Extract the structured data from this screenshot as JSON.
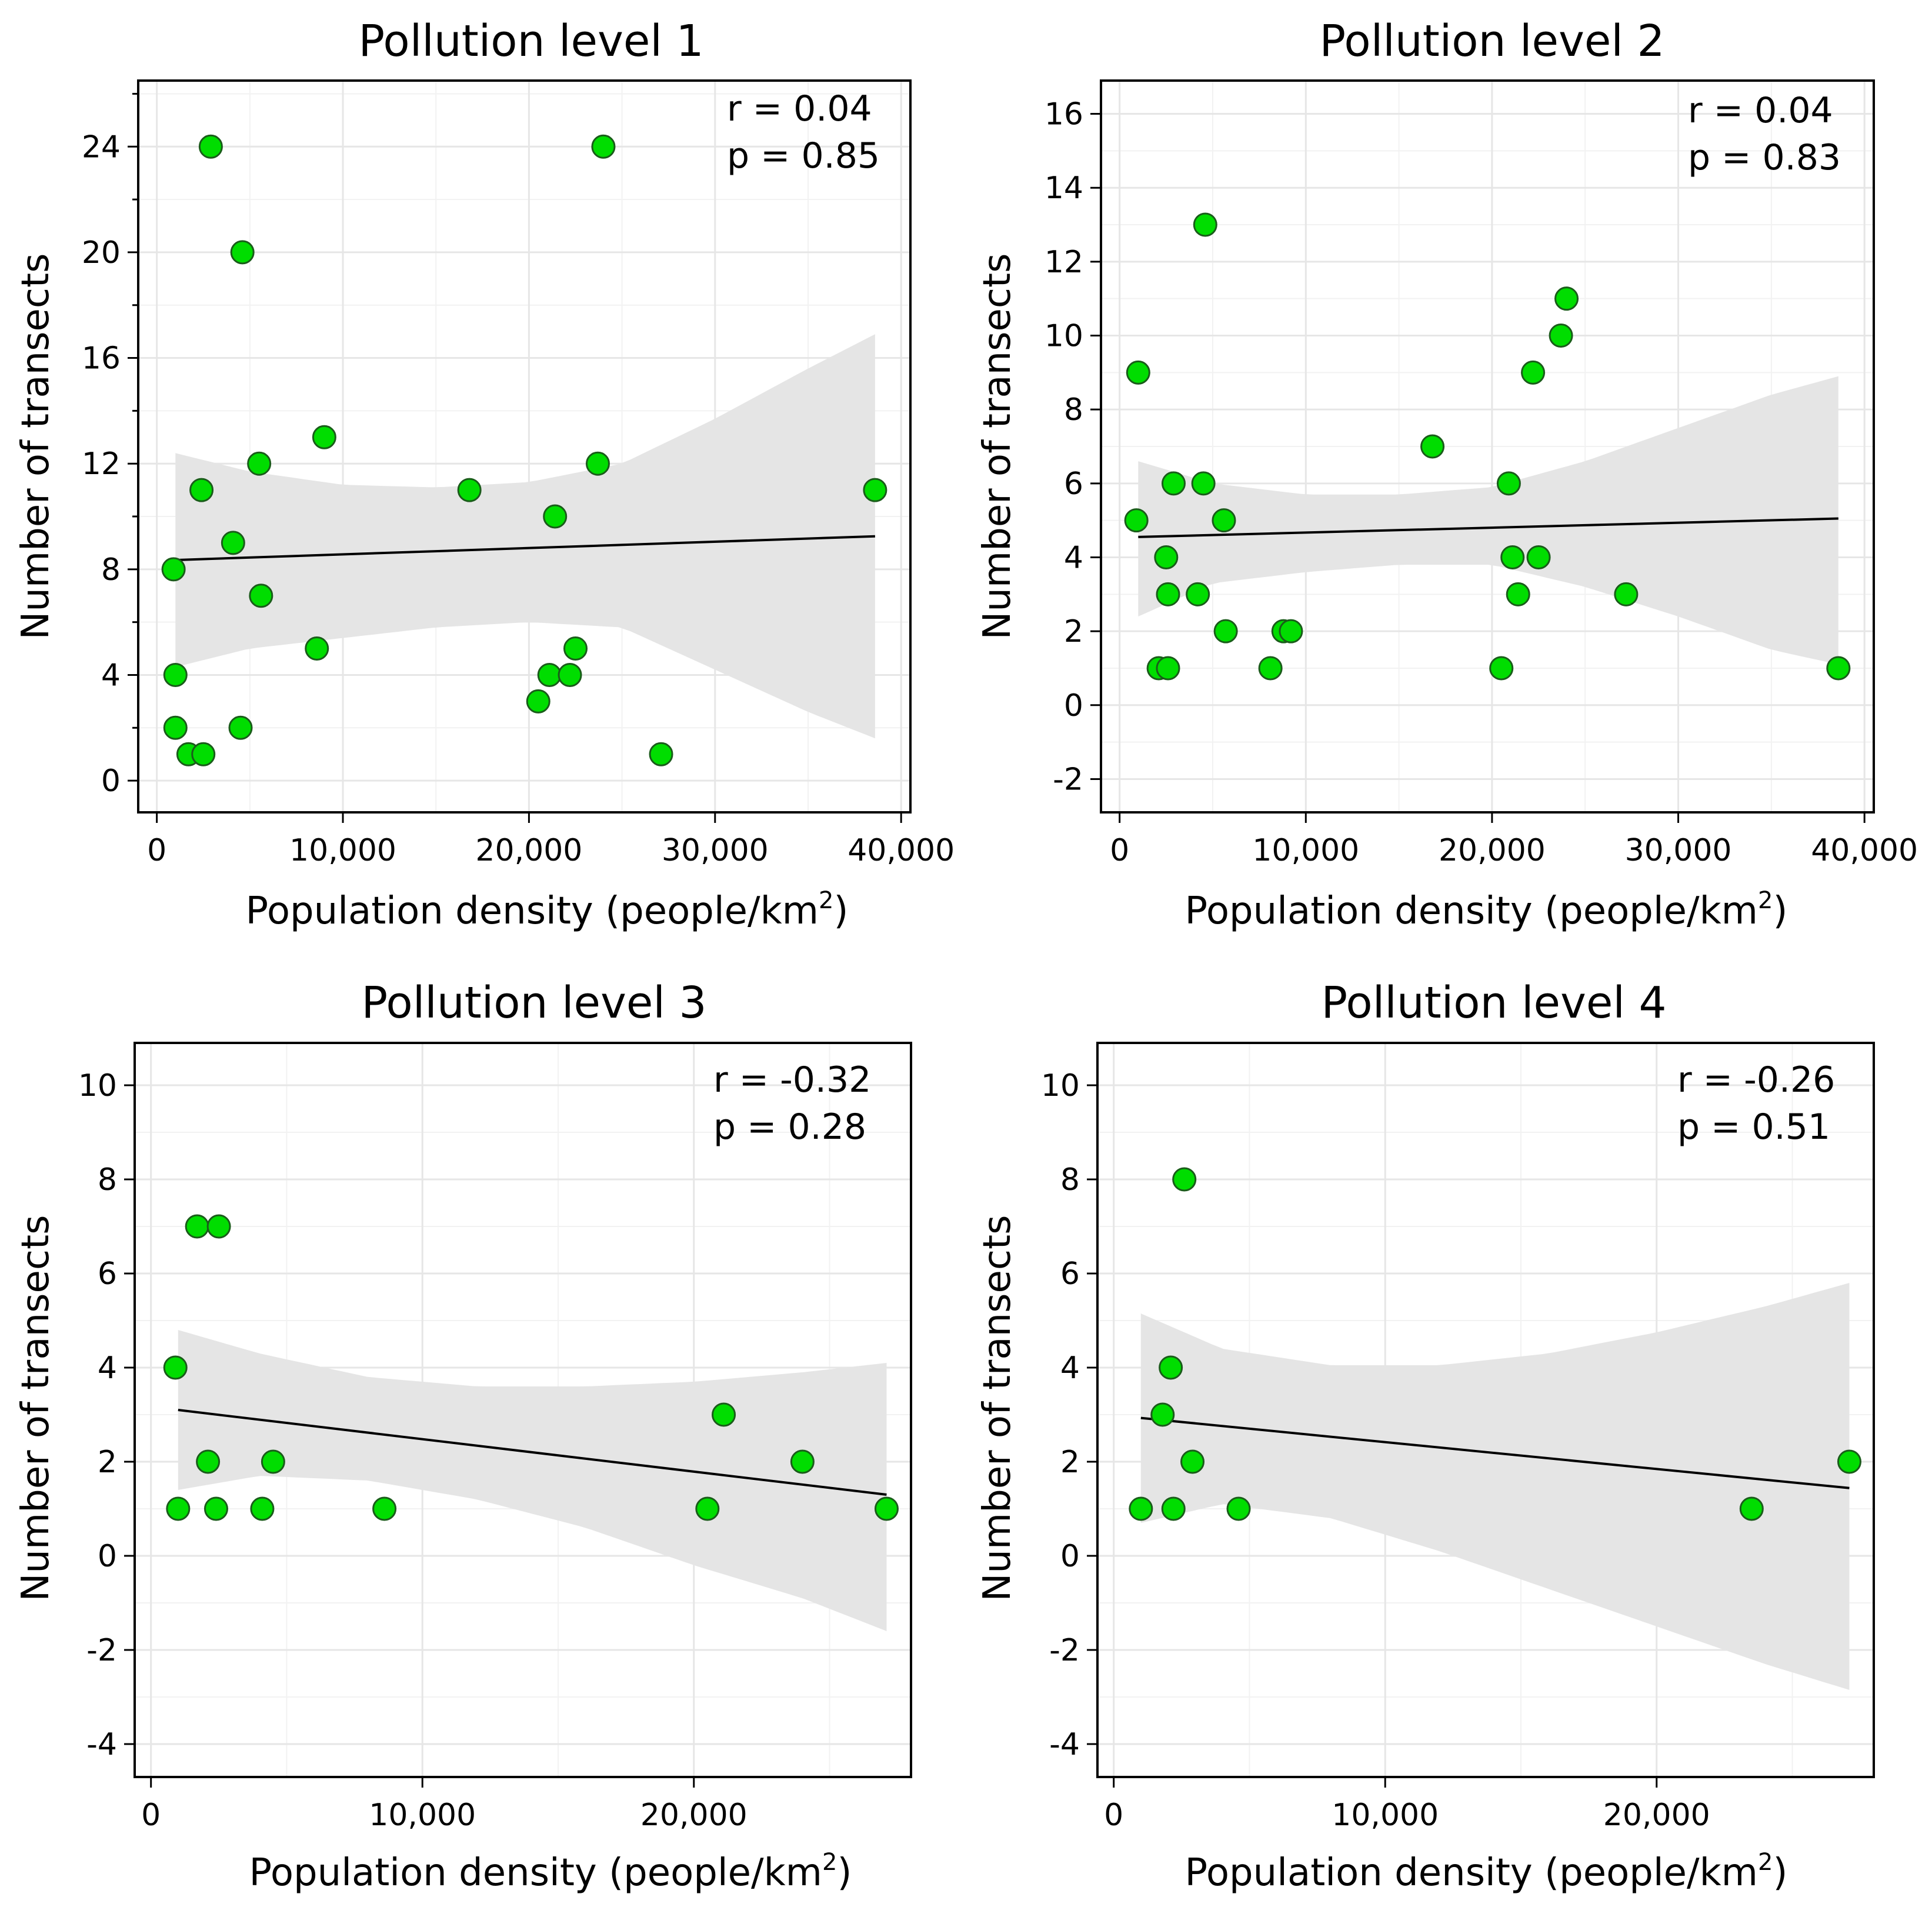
{
  "colors": {
    "point_fill": "#00dd00",
    "point_stroke": "#1a5c1a",
    "ci_band": "#e5e5e5",
    "fit_line": "#000000"
  },
  "chart_data": [
    {
      "type": "scatter",
      "title": "Pollution level 1",
      "xlabel": "Population density (people/km",
      "xlabel_sup": "2",
      "xlabel_end": ")",
      "ylabel": "Number of transects",
      "annotation": {
        "r": "r = 0.04",
        "p": "p = 0.85"
      },
      "xlim": [
        -1000,
        40500
      ],
      "ylim": [
        -1.2,
        26.5
      ],
      "xticks": [
        0,
        10000,
        20000,
        30000,
        40000
      ],
      "xtick_labels": [
        "0",
        "10,000",
        "20,000",
        "30,000",
        "40,000"
      ],
      "yticks": [
        0,
        4,
        8,
        12,
        16,
        20,
        24
      ],
      "ytick_labels": [
        "0",
        "4",
        "8",
        "12",
        "16",
        "20",
        "24"
      ],
      "yminor_ticks": [
        2,
        6,
        10,
        14,
        18,
        22,
        26
      ],
      "fit": {
        "x": [
          1000,
          38600
        ],
        "y": [
          8.35,
          9.25
        ]
      },
      "ci": {
        "x": [
          1000,
          5000,
          10000,
          15000,
          20000,
          25000,
          30000,
          35000,
          38600
        ],
        "upper": [
          12.4,
          11.7,
          11.2,
          11.1,
          11.3,
          12.0,
          13.7,
          15.6,
          16.9
        ],
        "lower": [
          4.3,
          5.0,
          5.4,
          5.8,
          6.0,
          5.8,
          4.2,
          2.6,
          1.6
        ]
      },
      "x": [
        900,
        1000,
        1000,
        1700,
        2400,
        2500,
        2900,
        4100,
        4500,
        4600,
        5500,
        5600,
        8600,
        9000,
        16800,
        20500,
        21100,
        21400,
        22200,
        22500,
        23700,
        24000,
        27100,
        38600
      ],
      "y": [
        8,
        2,
        4,
        1,
        11,
        1,
        24,
        9,
        2,
        20,
        12,
        7,
        5,
        13,
        11,
        3,
        4,
        10,
        4,
        5,
        12,
        24,
        1,
        11
      ]
    },
    {
      "type": "scatter",
      "title": "Pollution level 2",
      "xlabel": "Population density (people/km",
      "xlabel_sup": "2",
      "xlabel_end": ")",
      "ylabel": "Number of transects",
      "annotation": {
        "r": "r = 0.04",
        "p": "p = 0.83"
      },
      "xlim": [
        -1000,
        40500
      ],
      "ylim": [
        -2.9,
        16.9
      ],
      "xticks": [
        0,
        10000,
        20000,
        30000,
        40000
      ],
      "xtick_labels": [
        "0",
        "10,000",
        "20,000",
        "30,000",
        "40,000"
      ],
      "yticks": [
        -2,
        0,
        2,
        4,
        6,
        8,
        10,
        12,
        14,
        16
      ],
      "ytick_labels": [
        "-2",
        "0",
        "2",
        "4",
        "6",
        "8",
        "10",
        "12",
        "14",
        "16"
      ],
      "yminor_ticks": [],
      "fit": {
        "x": [
          1000,
          38600
        ],
        "y": [
          4.55,
          5.05
        ]
      },
      "ci": {
        "x": [
          1000,
          5000,
          10000,
          15000,
          20000,
          25000,
          30000,
          35000,
          38600
        ],
        "upper": [
          6.6,
          6.0,
          5.7,
          5.7,
          5.9,
          6.6,
          7.5,
          8.4,
          8.9
        ],
        "lower": [
          2.4,
          3.3,
          3.6,
          3.8,
          3.8,
          3.2,
          2.4,
          1.5,
          1.1
        ]
      },
      "x": [
        900,
        1000,
        2100,
        2500,
        2600,
        2600,
        2900,
        4200,
        4500,
        4600,
        5600,
        5700,
        8100,
        8800,
        9200,
        16800,
        20500,
        20900,
        21100,
        21400,
        22200,
        22500,
        23700,
        24000,
        27200,
        38600
      ],
      "y": [
        5,
        9,
        1,
        4,
        3,
        1,
        6,
        3,
        6,
        13,
        5,
        2,
        1,
        2,
        2,
        7,
        1,
        6,
        4,
        3,
        9,
        4,
        10,
        11,
        3,
        1
      ]
    },
    {
      "type": "scatter",
      "title": "Pollution level 3",
      "xlabel": "Population density (people/km",
      "xlabel_sup": "2",
      "xlabel_end": ")",
      "ylabel": "Number of transects",
      "annotation": {
        "r": "r = -0.32",
        "p": "p = 0.28"
      },
      "xlim": [
        -600,
        28000
      ],
      "ylim": [
        -4.7,
        10.9
      ],
      "xticks": [
        0,
        10000,
        20000
      ],
      "xtick_labels": [
        "0",
        "10,000",
        "20,000"
      ],
      "yticks": [
        -4,
        -2,
        0,
        2,
        4,
        6,
        8,
        10
      ],
      "ytick_labels": [
        "-4",
        "-2",
        "0",
        "2",
        "4",
        "6",
        "8",
        "10"
      ],
      "yminor_ticks": [],
      "fit": {
        "x": [
          1000,
          27100
        ],
        "y": [
          3.1,
          1.3
        ]
      },
      "ci": {
        "x": [
          1000,
          4000,
          8000,
          12000,
          16000,
          20000,
          24000,
          27100
        ],
        "upper": [
          4.8,
          4.3,
          3.8,
          3.6,
          3.6,
          3.7,
          3.9,
          4.1
        ],
        "lower": [
          1.4,
          1.7,
          1.6,
          1.2,
          0.6,
          -0.2,
          -0.9,
          -1.6
        ]
      },
      "x": [
        900,
        1000,
        1700,
        2100,
        2400,
        2500,
        4100,
        4500,
        8600,
        20500,
        21100,
        24000,
        27100
      ],
      "y": [
        4,
        1,
        7,
        2,
        1,
        7,
        1,
        2,
        1,
        1,
        3,
        2,
        1
      ]
    },
    {
      "type": "scatter",
      "title": "Pollution level 4",
      "xlabel": "Population density (people/km",
      "xlabel_sup": "2",
      "xlabel_end": ")",
      "ylabel": "Number of transects",
      "annotation": {
        "r": "r = -0.26",
        "p": "p = 0.51"
      },
      "xlim": [
        -600,
        28000
      ],
      "ylim": [
        -4.7,
        10.9
      ],
      "xticks": [
        0,
        10000,
        20000
      ],
      "xtick_labels": [
        "0",
        "10,000",
        "20,000"
      ],
      "yticks": [
        -4,
        -2,
        0,
        2,
        4,
        6,
        8,
        10
      ],
      "ytick_labels": [
        "-4",
        "-2",
        "0",
        "2",
        "4",
        "6",
        "8",
        "10"
      ],
      "yminor_ticks": [],
      "fit": {
        "x": [
          1000,
          27100
        ],
        "y": [
          2.93,
          1.44
        ]
      },
      "ci": {
        "x": [
          1000,
          4000,
          8000,
          12000,
          16000,
          20000,
          24000,
          27100
        ],
        "upper": [
          5.15,
          4.4,
          4.05,
          4.05,
          4.3,
          4.75,
          5.3,
          5.8
        ],
        "lower": [
          0.7,
          1.1,
          0.8,
          0.1,
          -0.7,
          -1.5,
          -2.3,
          -2.85
        ]
      },
      "x": [
        1000,
        1800,
        2100,
        2200,
        2600,
        2900,
        4600,
        23500,
        27100
      ],
      "y": [
        1,
        3,
        4,
        1,
        8,
        2,
        1,
        1,
        2
      ]
    }
  ]
}
